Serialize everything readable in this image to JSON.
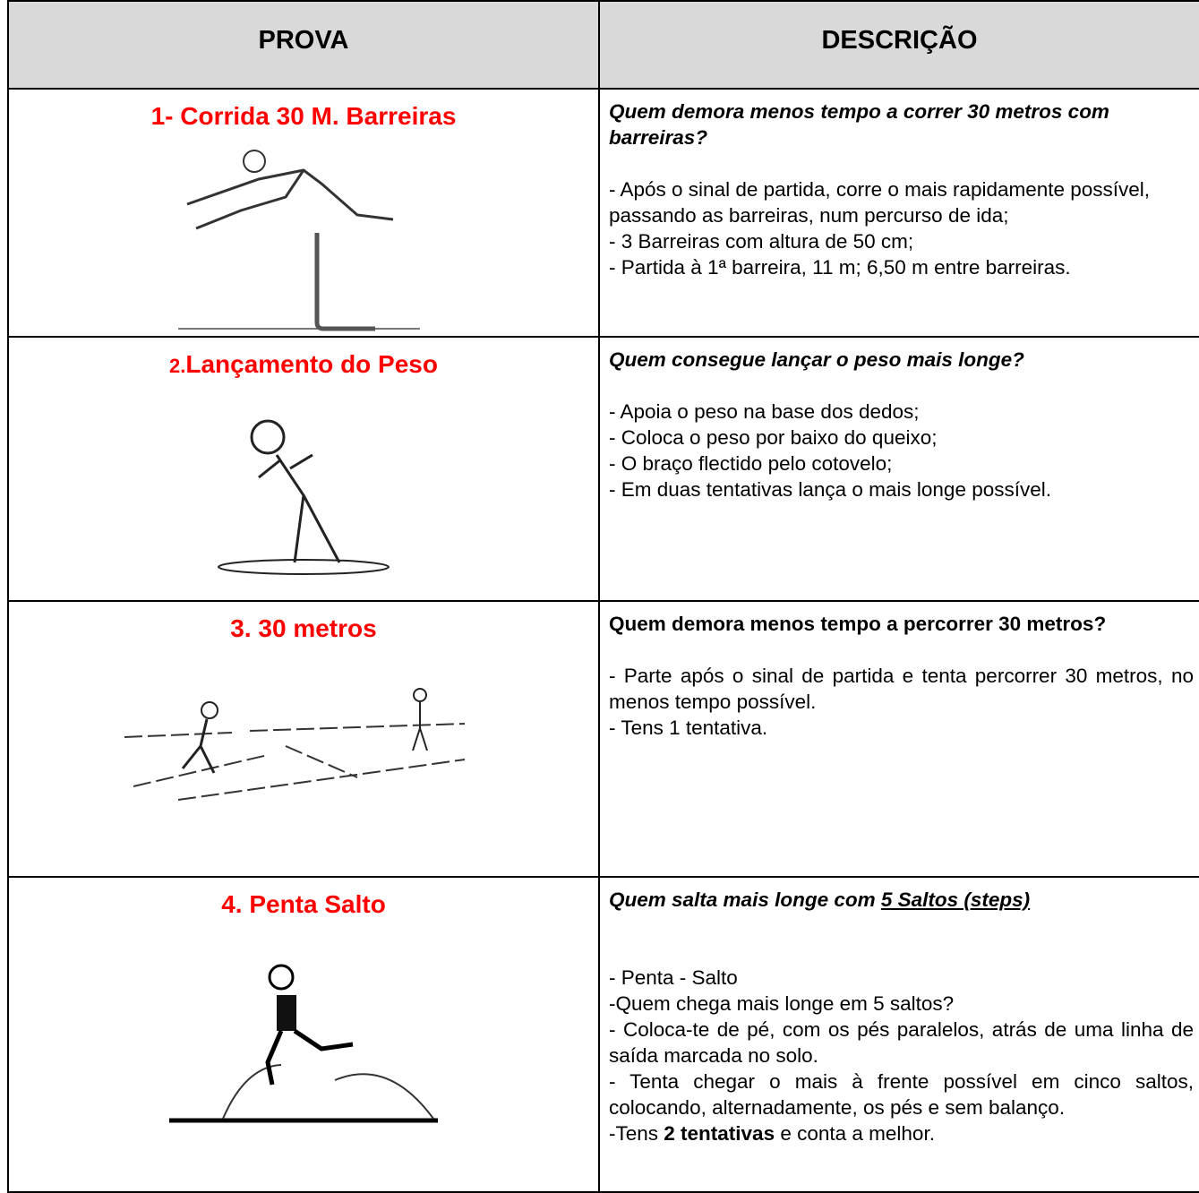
{
  "table": {
    "headers": [
      "PROVA",
      "DESCRIÇÃO"
    ],
    "rows": [
      {
        "prova": "1-  Corrida 30 M. Barreiras",
        "question": "Quem demora menos tempo a correr 30 metros com barreiras?",
        "lines": [
          "- Após o sinal de partida, corre o mais rapidamente possível, passando as barreiras, num percurso de ida;",
          "- 3 Barreiras com altura de 50 cm;",
          "- Partida à 1ª barreira, 11 m; 6,50 m entre barreiras."
        ]
      },
      {
        "prova_number": "2.",
        "prova": "Lançamento do Peso",
        "question": "Quem consegue lançar o peso mais longe?",
        "lines": [
          "- Apoia o peso na base dos dedos;",
          "- Coloca o peso por baixo do queixo;",
          "- O braço flectido pelo cotovelo;",
          "- Em duas tentativas lança o mais longe possível."
        ]
      },
      {
        "prova": "3.  30 metros",
        "question": "Quem demora menos tempo a percorrer 30 metros?",
        "lines": [
          "- Parte após o sinal de partida e tenta percorrer 30 metros, no menos tempo possível.",
          "- Tens 1 tentativa."
        ]
      },
      {
        "prova": "4. Penta Salto",
        "question": "Quem salta mais longe com ",
        "question_underlined": "5 Saltos (steps)",
        "lines": [
          "- Penta - Salto",
          "-Quem chega mais longe em 5 saltos?",
          "- Coloca-te de pé, com os pés paralelos, atrás de uma linha de saída marcada no solo.",
          "- Tenta chegar o mais à frente possível em cinco saltos, colocando, alternadamente, os pés e sem balanço."
        ],
        "last_line": [
          "-Tens ",
          "2 tentativas",
          " e conta a melhor."
        ]
      }
    ]
  }
}
